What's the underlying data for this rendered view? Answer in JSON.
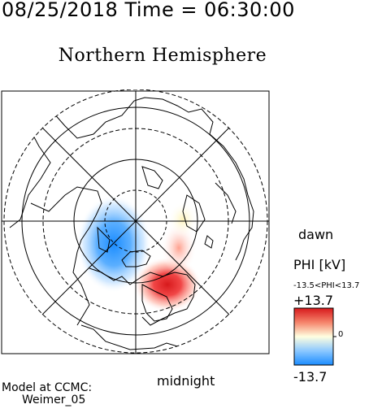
{
  "header": {
    "date": "08/25/2018",
    "time_label": "Time =",
    "time": "06:30:00"
  },
  "map": {
    "title": "Northern Hemisphere",
    "dawn_label": "dawn",
    "midnight_label": "midnight",
    "projection": "polar stereographic, north pole centered",
    "latitude_rings_deg": [
      80,
      70,
      60,
      50
    ],
    "meridian_spacing_deg": 45
  },
  "model": {
    "line1": "Model at CCMC:",
    "line2": "Weimer_05"
  },
  "colorbar": {
    "title": "PHI [kV]",
    "range_text": "-13.5<PHI<13.7",
    "max_label": "+13.7",
    "zero_label": "0",
    "min_label": "-13.7",
    "min": -13.7,
    "max": 13.7,
    "colors": {
      "max": "#d7191c",
      "mid": "#ffffe0",
      "min": "#1a8cff"
    }
  },
  "potential_cells": [
    {
      "polarity": "negative",
      "center_deg": {
        "lat": 70,
        "mlt_dir": "dawn-side"
      },
      "strength_kv": -13.5
    },
    {
      "polarity": "positive",
      "center_deg": {
        "lat": 68,
        "mlt_dir": "dusk-side"
      },
      "strength_kv": 13.7
    }
  ]
}
